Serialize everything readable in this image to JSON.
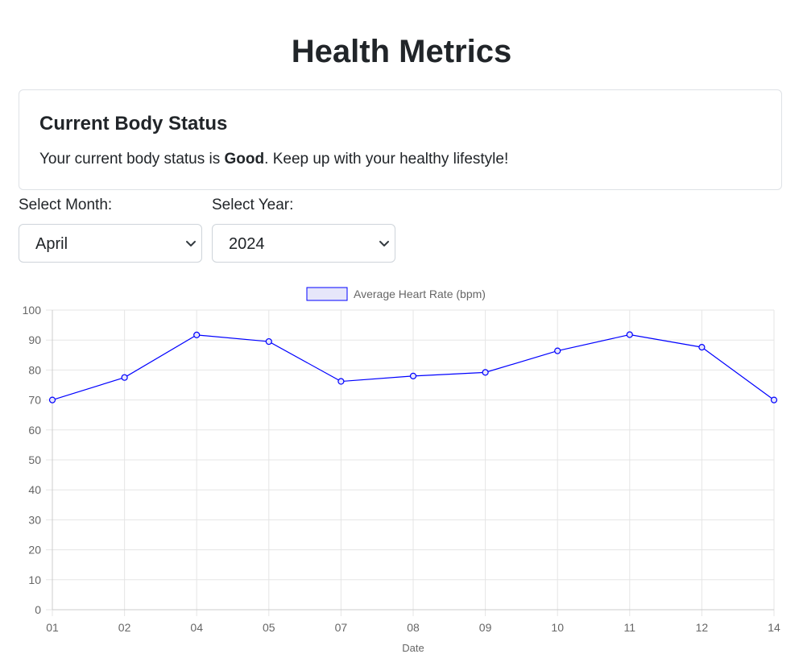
{
  "header": {
    "title": "Health Metrics"
  },
  "status_card": {
    "title": "Current Body Status",
    "text_before": "Your current body status is ",
    "status": "Good",
    "text_after": ". Keep up with your healthy lifestyle!"
  },
  "filters": {
    "month_label": "Select Month:",
    "month_value": "April",
    "year_label": "Select Year:",
    "year_value": "2024"
  },
  "colors": {
    "line": "#0000ff",
    "legend_fill": "#e6e6fa",
    "grid": "#e5e5e5",
    "tick_text": "#666666"
  },
  "chart_data": {
    "type": "line",
    "legend_position": "top",
    "grid": true,
    "x": [
      "01",
      "02",
      "04",
      "05",
      "07",
      "08",
      "09",
      "10",
      "11",
      "12",
      "14"
    ],
    "series": [
      {
        "name": "Average Heart Rate (bpm)",
        "values": [
          70,
          77.5,
          91.7,
          89.5,
          76.2,
          78,
          79.2,
          86.4,
          91.8,
          87.6,
          70
        ]
      }
    ],
    "xlabel": "Date",
    "ylabel": "",
    "ylim": [
      0,
      100
    ],
    "yticks": [
      100,
      90,
      80,
      70,
      60,
      50,
      40,
      30,
      20,
      10,
      0
    ]
  }
}
